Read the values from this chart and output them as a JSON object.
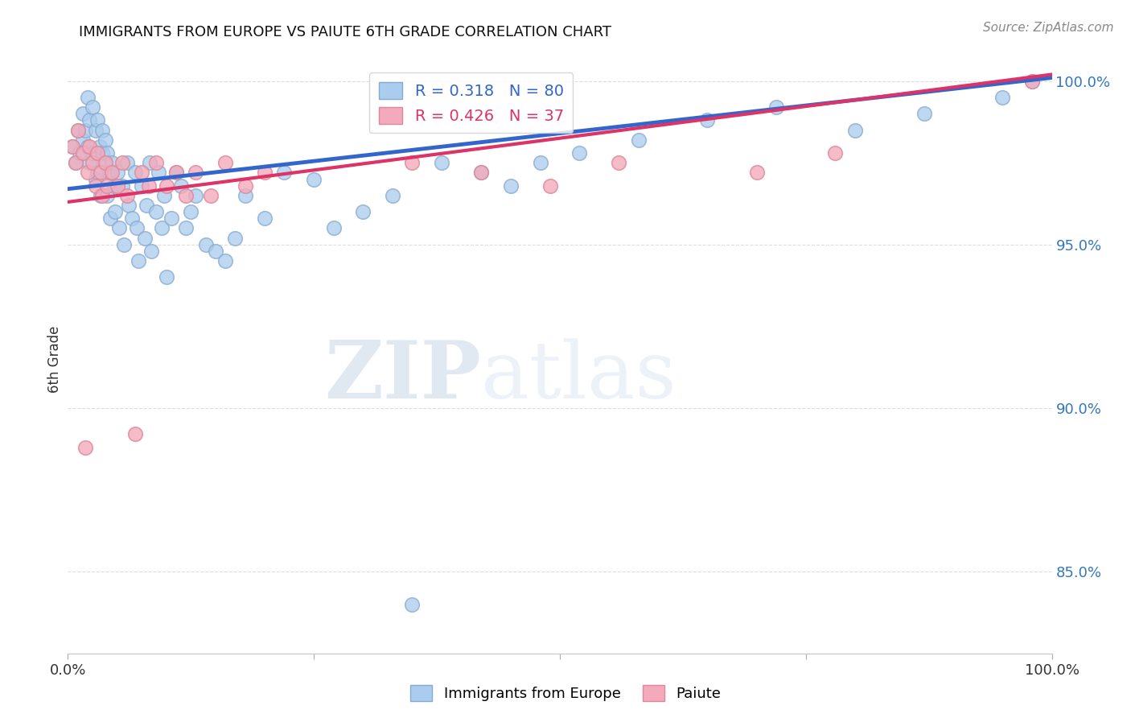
{
  "title": "IMMIGRANTS FROM EUROPE VS PAIUTE 6TH GRADE CORRELATION CHART",
  "source": "Source: ZipAtlas.com",
  "ylabel": "6th Grade",
  "legend_label_blue": "Immigrants from Europe",
  "legend_label_pink": "Paiute",
  "xlim": [
    0.0,
    1.0
  ],
  "ylim": [
    0.825,
    1.005
  ],
  "ytick_vals": [
    0.85,
    0.9,
    0.95,
    1.0
  ],
  "ytick_labels": [
    "85.0%",
    "90.0%",
    "95.0%",
    "100.0%"
  ],
  "xtick_vals": [
    0.0,
    0.25,
    0.5,
    0.75,
    1.0
  ],
  "xtick_labels": [
    "0.0%",
    "",
    "",
    "",
    "100.0%"
  ],
  "blue_R": 0.318,
  "blue_N": 80,
  "pink_R": 0.426,
  "pink_N": 37,
  "blue_color": "#aaccee",
  "pink_color": "#f4aabc",
  "blue_edge_color": "#88aacc",
  "pink_edge_color": "#dd8899",
  "blue_line_color": "#3366cc",
  "pink_line_color": "#dd3366",
  "watermark_zip": "ZIP",
  "watermark_atlas": "atlas",
  "background_color": "#ffffff",
  "grid_color": "#dddddd",
  "blue_x": [
    0.005,
    0.008,
    0.01,
    0.012,
    0.015,
    0.015,
    0.018,
    0.02,
    0.02,
    0.022,
    0.022,
    0.025,
    0.025,
    0.028,
    0.028,
    0.03,
    0.03,
    0.032,
    0.033,
    0.035,
    0.035,
    0.037,
    0.038,
    0.04,
    0.04,
    0.042,
    0.043,
    0.045,
    0.047,
    0.048,
    0.05,
    0.052,
    0.055,
    0.057,
    0.06,
    0.062,
    0.065,
    0.068,
    0.07,
    0.072,
    0.075,
    0.078,
    0.08,
    0.083,
    0.085,
    0.09,
    0.092,
    0.095,
    0.098,
    0.1,
    0.105,
    0.11,
    0.115,
    0.12,
    0.125,
    0.13,
    0.14,
    0.15,
    0.16,
    0.17,
    0.18,
    0.2,
    0.22,
    0.25,
    0.27,
    0.3,
    0.33,
    0.35,
    0.38,
    0.42,
    0.45,
    0.48,
    0.52,
    0.58,
    0.65,
    0.72,
    0.8,
    0.87,
    0.95,
    0.98
  ],
  "blue_y": [
    0.98,
    0.975,
    0.985,
    0.978,
    0.982,
    0.99,
    0.985,
    0.98,
    0.995,
    0.988,
    0.975,
    0.992,
    0.978,
    0.985,
    0.97,
    0.988,
    0.972,
    0.98,
    0.965,
    0.985,
    0.978,
    0.975,
    0.982,
    0.978,
    0.965,
    0.972,
    0.958,
    0.975,
    0.968,
    0.96,
    0.972,
    0.955,
    0.968,
    0.95,
    0.975,
    0.962,
    0.958,
    0.972,
    0.955,
    0.945,
    0.968,
    0.952,
    0.962,
    0.975,
    0.948,
    0.96,
    0.972,
    0.955,
    0.965,
    0.94,
    0.958,
    0.972,
    0.968,
    0.955,
    0.96,
    0.965,
    0.95,
    0.948,
    0.945,
    0.952,
    0.965,
    0.958,
    0.972,
    0.97,
    0.955,
    0.96,
    0.965,
    0.84,
    0.975,
    0.972,
    0.968,
    0.975,
    0.978,
    0.982,
    0.988,
    0.992,
    0.985,
    0.99,
    0.995,
    1.0
  ],
  "pink_x": [
    0.005,
    0.008,
    0.01,
    0.015,
    0.018,
    0.02,
    0.022,
    0.025,
    0.028,
    0.03,
    0.033,
    0.035,
    0.038,
    0.04,
    0.045,
    0.05,
    0.055,
    0.06,
    0.068,
    0.075,
    0.082,
    0.09,
    0.1,
    0.11,
    0.12,
    0.13,
    0.145,
    0.16,
    0.18,
    0.2,
    0.35,
    0.42,
    0.49,
    0.56,
    0.7,
    0.78,
    0.98
  ],
  "pink_y": [
    0.98,
    0.975,
    0.985,
    0.978,
    0.888,
    0.972,
    0.98,
    0.975,
    0.968,
    0.978,
    0.972,
    0.965,
    0.975,
    0.968,
    0.972,
    0.968,
    0.975,
    0.965,
    0.892,
    0.972,
    0.968,
    0.975,
    0.968,
    0.972,
    0.965,
    0.972,
    0.965,
    0.975,
    0.968,
    0.972,
    0.975,
    0.972,
    0.968,
    0.975,
    0.972,
    0.978,
    1.0
  ]
}
